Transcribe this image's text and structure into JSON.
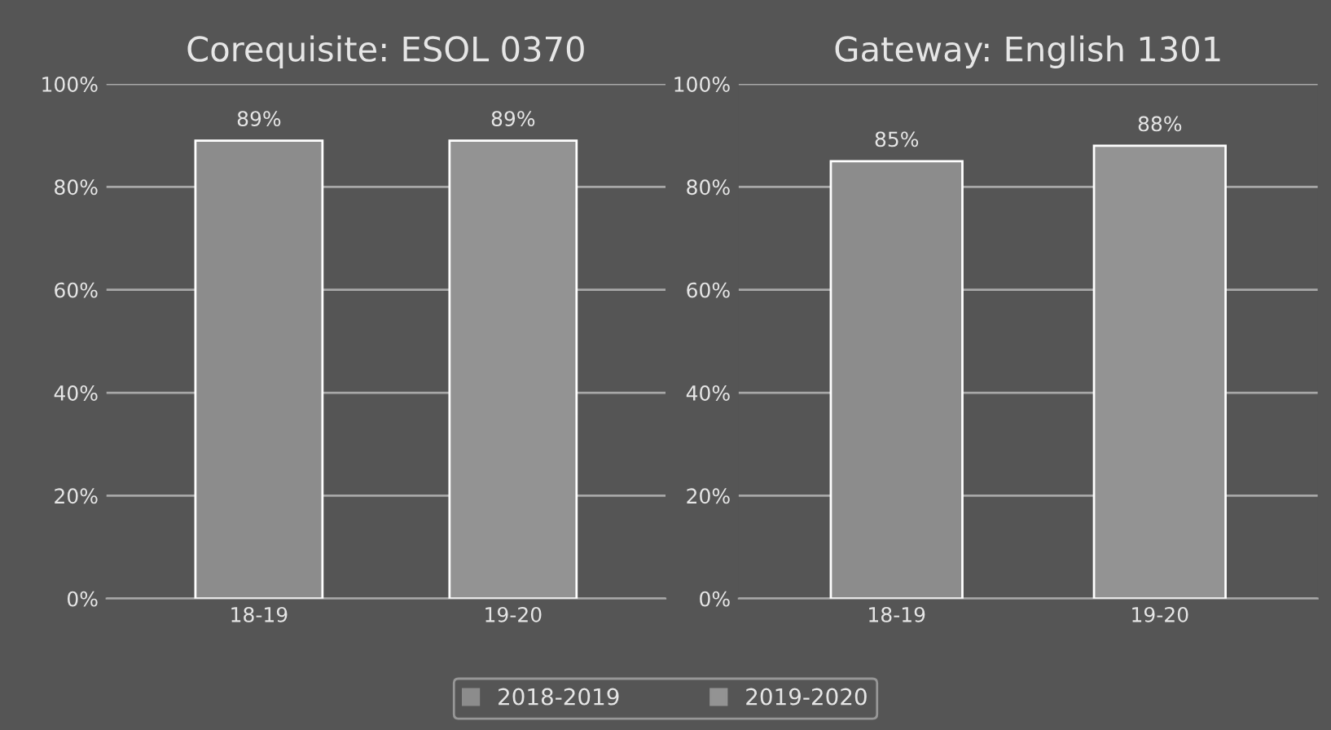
{
  "chart_data": [
    {
      "type": "bar",
      "title": "Corequisite: ESOL 0370",
      "categories": [
        "18-19",
        "19-20"
      ],
      "series": [
        {
          "name": "2018-2019",
          "color": "#8c8c8c",
          "values": [
            89,
            null
          ]
        },
        {
          "name": "2019-2020",
          "color": "#939393",
          "values": [
            null,
            89
          ]
        }
      ],
      "ylim": [
        0,
        100
      ],
      "yticks": [
        {
          "value": 0,
          "label": "0%"
        },
        {
          "value": 20,
          "label": "20%"
        },
        {
          "value": 40,
          "label": "40%"
        },
        {
          "value": 60,
          "label": "60%"
        },
        {
          "value": 80,
          "label": "80%"
        },
        {
          "value": 100,
          "label": "100%"
        }
      ],
      "value_labels": [
        "89%",
        "89%"
      ],
      "grid": "y",
      "legend": "bottom"
    },
    {
      "type": "bar",
      "title": "Gateway: English 1301",
      "categories": [
        "18-19",
        "19-20"
      ],
      "series": [
        {
          "color": "#8c8c8c",
          "values": [
            85,
            null
          ]
        },
        {
          "color": "#939393",
          "values": [
            null,
            88
          ]
        }
      ],
      "ylim": [
        0,
        100
      ],
      "yticks": [
        {
          "value": 0,
          "label": "0%"
        },
        {
          "value": 20,
          "label": "20%"
        },
        {
          "value": 40,
          "label": "40%"
        },
        {
          "value": 60,
          "label": "60%"
        },
        {
          "value": 80,
          "label": "80%"
        },
        {
          "value": 100,
          "label": "100%"
        }
      ],
      "value_labels": [
        "85%",
        "88%"
      ],
      "grid": "y"
    }
  ]
}
